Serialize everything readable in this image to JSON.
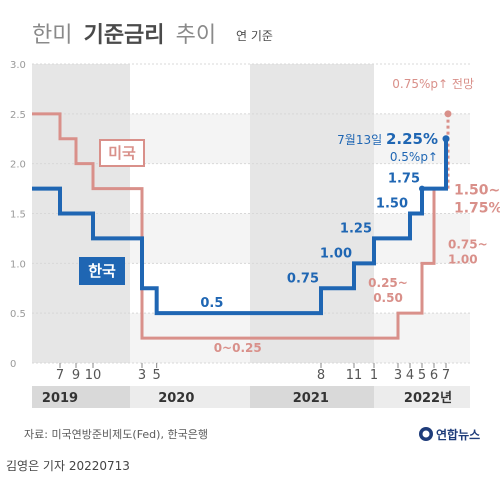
{
  "header": {
    "title_light": "한미",
    "title_bold": "기준금리",
    "title_rest": "추이",
    "unit": "연 기준"
  },
  "footer": {
    "source": "자료: 미국연방준비제도(Fed), 한국은행",
    "logo": "연합뉴스",
    "credit": "김영은 기자  20220713"
  },
  "colors": {
    "korea": "#1f66b3",
    "us": "#d9908a",
    "band": "#e6e6e6"
  },
  "chart_data": {
    "type": "line",
    "title": "한미 기준금리 추이",
    "unit": "연 기준",
    "ylim": [
      0,
      3.0
    ],
    "y_ticks": [
      "0",
      "0.5",
      "1.0",
      "1.5",
      "2.0",
      "2.5",
      "3.0"
    ],
    "x_ticks": [
      {
        "label": "7",
        "month": "2019-07"
      },
      {
        "label": "9",
        "month": "2019-09"
      },
      {
        "label": "10",
        "month": "2019-10"
      },
      {
        "label": "3",
        "month": "2020-03"
      },
      {
        "label": "5",
        "month": "2020-05"
      },
      {
        "label": "8",
        "month": "2021-08"
      },
      {
        "label": "11",
        "month": "2021-11"
      },
      {
        "label": "1",
        "month": "2022-01"
      },
      {
        "label": "3",
        "month": "2022-03"
      },
      {
        "label": "4",
        "month": "2022-04"
      },
      {
        "label": "5",
        "month": "2022-05"
      },
      {
        "label": "6",
        "month": "2022-06"
      },
      {
        "label": "7",
        "month": "2022-07"
      }
    ],
    "years": [
      "2019",
      "2020",
      "2021",
      "2022년"
    ],
    "series": [
      {
        "name": "한국",
        "points": [
          {
            "month": "2019-01",
            "rate": 1.75
          },
          {
            "month": "2019-07",
            "rate": 1.5
          },
          {
            "month": "2019-10",
            "rate": 1.25
          },
          {
            "month": "2020-03",
            "rate": 0.75
          },
          {
            "month": "2020-05",
            "rate": 0.5
          },
          {
            "month": "2021-08",
            "rate": 0.75
          },
          {
            "month": "2021-11",
            "rate": 1.0
          },
          {
            "month": "2022-01",
            "rate": 1.25
          },
          {
            "month": "2022-04",
            "rate": 1.5
          },
          {
            "month": "2022-05",
            "rate": 1.75
          },
          {
            "month": "2022-07",
            "rate": 2.25
          }
        ],
        "end_month": "2022-07",
        "labels": [
          {
            "text": "0.5",
            "month": "2020-11",
            "rate": 0.5
          },
          {
            "text": "0.75",
            "month": "2021-08",
            "rate": 0.75
          },
          {
            "text": "1.00",
            "month": "2021-11",
            "rate": 1.0
          },
          {
            "text": "1.25",
            "month": "2022-01",
            "rate": 1.25
          },
          {
            "text": "1.50",
            "month": "2022-04",
            "rate": 1.5
          },
          {
            "text": "1.75",
            "month": "2022-05",
            "rate": 1.75
          }
        ],
        "callout": {
          "date": "7월13일",
          "value": "2.25%",
          "change": "0.5%p↑"
        }
      },
      {
        "name": "미국",
        "points": [
          {
            "month": "2019-01",
            "rate": 2.5
          },
          {
            "month": "2019-07",
            "rate": 2.25
          },
          {
            "month": "2019-09",
            "rate": 2.0
          },
          {
            "month": "2019-10",
            "rate": 1.75
          },
          {
            "month": "2020-03",
            "rate": 0.25
          },
          {
            "month": "2022-03",
            "rate": 0.5
          },
          {
            "month": "2022-05",
            "rate": 1.0
          },
          {
            "month": "2022-06",
            "rate": 1.75
          }
        ],
        "end_month": "2022-07",
        "labels": [
          {
            "text": "0~0.25",
            "month": "2020-12",
            "rate": 0.25
          },
          {
            "text": "0.25~",
            "month": "2022-01",
            "rate": 0.6
          },
          {
            "text": "0.50",
            "month": "2022-01",
            "rate": 0.6
          },
          {
            "text": "0.75~",
            "month": "2022-06",
            "rate": 1.05
          },
          {
            "text": "1.00",
            "month": "2022-06",
            "rate": 1.05
          },
          {
            "text": "1.50~",
            "month": "2022-07",
            "rate": 1.75
          },
          {
            "text": "1.75%",
            "month": "2022-07",
            "rate": 1.75
          }
        ],
        "forecast": {
          "month": "2022-07",
          "from": 1.75,
          "to": 2.5,
          "label": "0.75%p↑ 전망"
        }
      }
    ]
  }
}
